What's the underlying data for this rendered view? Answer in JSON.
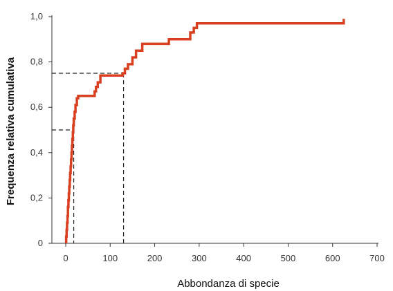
{
  "chart_data": {
    "type": "line",
    "step": true,
    "xlabel": "Abbondanza di specie",
    "ylabel": "Frequenza relativa cumulativa",
    "xlim": [
      0,
      700
    ],
    "ylim": [
      0,
      1.0
    ],
    "x_ticks": [
      0,
      100,
      200,
      300,
      400,
      500,
      600,
      700
    ],
    "x_tick_labels": [
      "0",
      "100",
      "200",
      "300",
      "400",
      "500",
      "600",
      "700"
    ],
    "y_ticks": [
      0,
      0.2,
      0.4,
      0.6,
      0.8,
      1.0
    ],
    "y_tick_labels": [
      "0",
      "0,2",
      "0,4",
      "0,6",
      "0,8",
      "1,0"
    ],
    "grid": false,
    "colors": {
      "series": "#d84020",
      "reference": "#222222",
      "axis": "#333333"
    },
    "series": [
      {
        "x": [
          1,
          2,
          3,
          4,
          5,
          6,
          7,
          8,
          9,
          10,
          11,
          12,
          13,
          14,
          15,
          16,
          17,
          18,
          20,
          22,
          25,
          28,
          30,
          33,
          38,
          55,
          65,
          68,
          72,
          78,
          85,
          105,
          120,
          128,
          133,
          140,
          150,
          158,
          165,
          172,
          180,
          200,
          232,
          255,
          280,
          288,
          295,
          300,
          622,
          625
        ],
        "y": [
          0.03,
          0.06,
          0.09,
          0.12,
          0.16,
          0.19,
          0.22,
          0.25,
          0.28,
          0.31,
          0.34,
          0.37,
          0.4,
          0.43,
          0.46,
          0.49,
          0.52,
          0.55,
          0.58,
          0.61,
          0.64,
          0.65,
          0.65,
          0.65,
          0.65,
          0.65,
          0.67,
          0.69,
          0.71,
          0.74,
          0.74,
          0.74,
          0.74,
          0.75,
          0.77,
          0.79,
          0.82,
          0.85,
          0.85,
          0.88,
          0.88,
          0.88,
          0.9,
          0.9,
          0.93,
          0.95,
          0.97,
          0.97,
          0.97,
          0.99
        ]
      }
    ],
    "reference_lines": [
      {
        "x": 18,
        "y": 0.5
      },
      {
        "x": 130,
        "y": 0.75
      }
    ]
  }
}
